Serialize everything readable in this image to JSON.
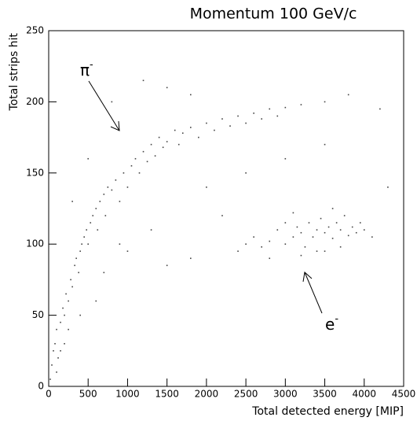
{
  "chart_data": {
    "type": "scatter",
    "title": "Momentum 100 GeV/c",
    "x_label": "Total detected energy [MIP]",
    "y_label": "Total strips hit",
    "color": "#444444",
    "xlim": [
      0,
      4500
    ],
    "xticks": [
      0,
      500,
      1000,
      1500,
      2000,
      2500,
      3000,
      3500,
      4000,
      4500
    ],
    "ylim": [
      0,
      250
    ],
    "yticks": [
      0,
      50,
      100,
      150,
      200,
      250
    ],
    "annotations": [
      {
        "text": "π",
        "sup": "-"
      },
      {
        "text": "e",
        "sup": "-"
      }
    ],
    "x": [
      20,
      40,
      60,
      80,
      100,
      120,
      150,
      180,
      200,
      220,
      250,
      280,
      300,
      330,
      350,
      380,
      400,
      420,
      450,
      480,
      500,
      530,
      560,
      600,
      620,
      650,
      700,
      720,
      750,
      800,
      850,
      900,
      950,
      1000,
      1050,
      1100,
      1150,
      1200,
      1250,
      1300,
      1350,
      1400,
      1450,
      1500,
      1600,
      1650,
      1700,
      1800,
      1900,
      2000,
      2100,
      2200,
      2300,
      2400,
      2500,
      2600,
      2700,
      2800,
      2900,
      3000,
      3200,
      3500,
      3800,
      4200,
      500,
      800,
      1200,
      1500,
      1800,
      2000,
      2200,
      1800,
      1500,
      2500,
      3000,
      3500,
      1300,
      1000,
      700,
      300,
      200,
      100,
      150,
      250,
      4300,
      600,
      400,
      900,
      2500,
      2600,
      2700,
      2800,
      2900,
      3000,
      3100,
      3150,
      3200,
      3250,
      3300,
      3350,
      3400,
      3450,
      3500,
      3550,
      3600,
      3650,
      3700,
      3750,
      3800,
      3850,
      3900,
      3950,
      4000,
      4100,
      3400,
      3600,
      3000,
      2800,
      3200,
      3700,
      2400,
      3100,
      3500
    ],
    "values": [
      5,
      15,
      25,
      30,
      40,
      20,
      45,
      55,
      50,
      65,
      60,
      75,
      70,
      85,
      90,
      80,
      95,
      100,
      105,
      110,
      100,
      115,
      120,
      125,
      110,
      130,
      135,
      120,
      140,
      138,
      145,
      130,
      150,
      140,
      155,
      160,
      150,
      165,
      158,
      170,
      162,
      175,
      168,
      172,
      180,
      170,
      178,
      182,
      175,
      185,
      180,
      188,
      183,
      190,
      185,
      192,
      188,
      195,
      190,
      196,
      198,
      200,
      205,
      195,
      160,
      200,
      215,
      210,
      205,
      140,
      120,
      90,
      85,
      150,
      160,
      170,
      110,
      95,
      80,
      130,
      30,
      10,
      25,
      40,
      140,
      60,
      50,
      100,
      100,
      105,
      98,
      102,
      110,
      100,
      105,
      112,
      108,
      98,
      115,
      105,
      110,
      118,
      108,
      112,
      104,
      115,
      110,
      120,
      106,
      112,
      108,
      115,
      110,
      105,
      95,
      125,
      115,
      90,
      92,
      98,
      95,
      122,
      95
    ]
  }
}
